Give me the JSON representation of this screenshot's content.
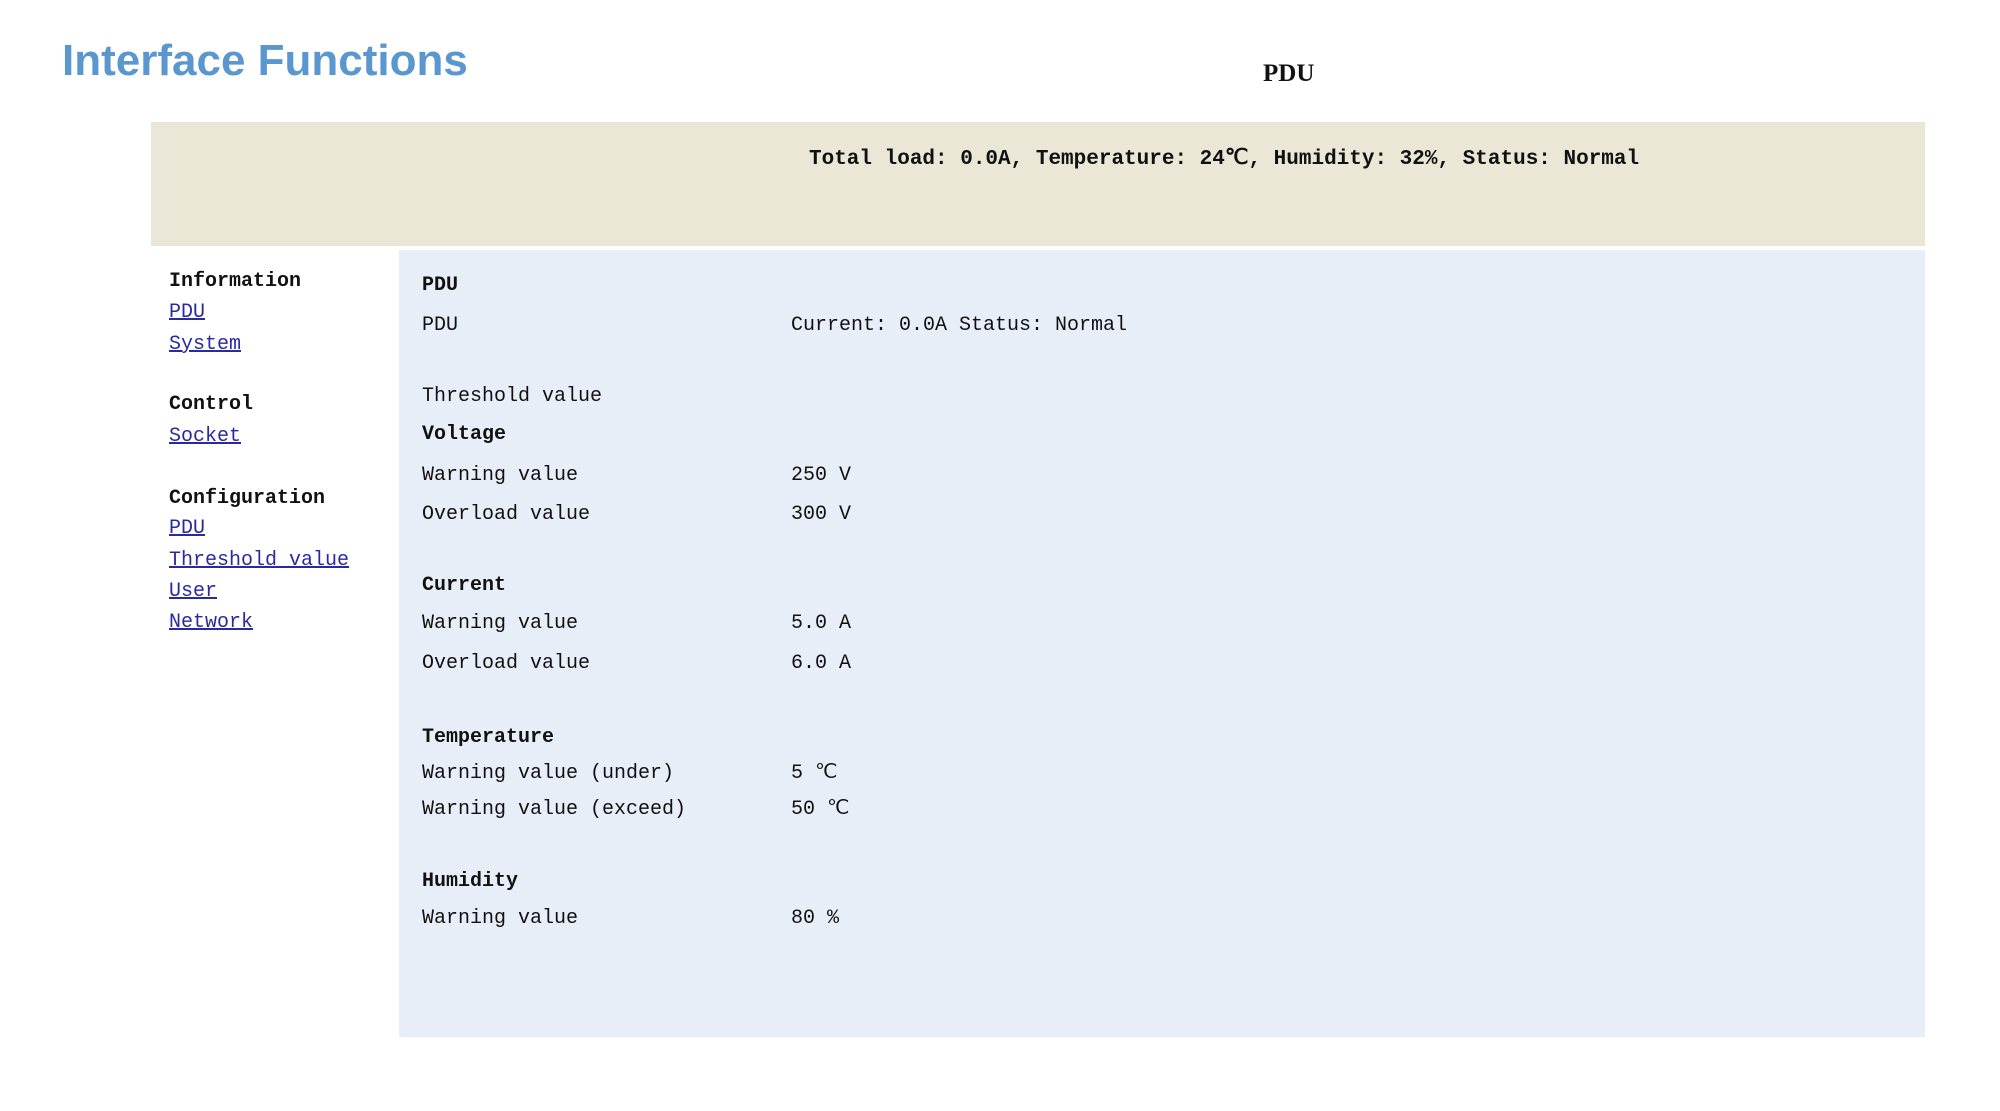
{
  "slide_title": "Interface Functions",
  "page_title": "PDU",
  "status_bar": "Total load: 0.0A,  Temperature: 24℃,  Humidity: 32%, Status: Normal",
  "sidebar": {
    "sections": [
      {
        "heading": "Information",
        "links": [
          "PDU",
          "System"
        ]
      },
      {
        "heading": "Control",
        "links": [
          "Socket"
        ]
      },
      {
        "heading": "Configuration",
        "links": [
          "PDU",
          "Threshold value",
          "User",
          "Network"
        ]
      }
    ]
  },
  "main": {
    "heading": "PDU",
    "pdu_label": "PDU",
    "pdu_value": "Current: 0.0A Status: Normal",
    "threshold_title": "Threshold value",
    "voltage": {
      "title": "Voltage",
      "rows": [
        {
          "label": "Warning value",
          "value": "250 V"
        },
        {
          "label": "Overload value",
          "value": "300 V"
        }
      ]
    },
    "current": {
      "title": "Current",
      "rows": [
        {
          "label": "Warning value",
          "value": "5.0 A"
        },
        {
          "label": "Overload value",
          "value": "6.0 A"
        }
      ]
    },
    "temperature": {
      "title": "Temperature",
      "rows": [
        {
          "label": "Warning value (under)",
          "value": "5 ℃"
        },
        {
          "label": "Warning value (exceed)",
          "value": "50 ℃"
        }
      ]
    },
    "humidity": {
      "title": "Humidity",
      "rows": [
        {
          "label": "Warning value",
          "value": "80 %"
        }
      ]
    }
  },
  "colors": {
    "title": "#5b97cf",
    "banner": "#ebe7d6",
    "content": "#e8eef8",
    "link": "#2a2aa0"
  }
}
